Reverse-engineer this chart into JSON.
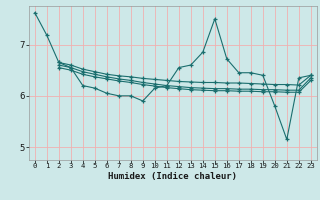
{
  "title": "",
  "xlabel": "Humidex (Indice chaleur)",
  "ylabel": "",
  "bg_color": "#cde8e8",
  "grid_color": "#f0b0b0",
  "line_color": "#1a6e6e",
  "xlim": [
    -0.5,
    23.5
  ],
  "ylim": [
    4.75,
    7.75
  ],
  "yticks": [
    5,
    6,
    7
  ],
  "xticks": [
    0,
    1,
    2,
    3,
    4,
    5,
    6,
    7,
    8,
    9,
    10,
    11,
    12,
    13,
    14,
    15,
    16,
    17,
    18,
    19,
    20,
    21,
    22,
    23
  ],
  "lines": [
    {
      "x": [
        0,
        1,
        2,
        3,
        4,
        5,
        6,
        7,
        8,
        9,
        10,
        11,
        12,
        13,
        14,
        15,
        16,
        17,
        18,
        19,
        20,
        21,
        22,
        23
      ],
      "y": [
        7.62,
        7.18,
        6.65,
        6.55,
        6.2,
        6.15,
        6.05,
        6.0,
        6.0,
        5.9,
        6.15,
        6.2,
        6.55,
        6.6,
        6.85,
        7.5,
        6.72,
        6.45,
        6.45,
        6.4,
        5.8,
        5.15,
        6.35,
        6.4
      ]
    },
    {
      "x": [
        2,
        3,
        4,
        5,
        6,
        7,
        8,
        9,
        10,
        11,
        12,
        13,
        14,
        15,
        16,
        17,
        18,
        19,
        20,
        21,
        22,
        23
      ],
      "y": [
        6.65,
        6.6,
        6.52,
        6.47,
        6.42,
        6.39,
        6.37,
        6.34,
        6.32,
        6.3,
        6.28,
        6.27,
        6.26,
        6.26,
        6.25,
        6.25,
        6.24,
        6.23,
        6.22,
        6.22,
        6.21,
        6.4
      ]
    },
    {
      "x": [
        2,
        3,
        4,
        5,
        6,
        7,
        8,
        9,
        10,
        11,
        12,
        13,
        14,
        15,
        16,
        17,
        18,
        19,
        20,
        21,
        22,
        23
      ],
      "y": [
        6.6,
        6.55,
        6.47,
        6.42,
        6.37,
        6.33,
        6.3,
        6.26,
        6.23,
        6.2,
        6.18,
        6.16,
        6.15,
        6.14,
        6.14,
        6.13,
        6.13,
        6.12,
        6.12,
        6.11,
        6.11,
        6.35
      ]
    },
    {
      "x": [
        2,
        3,
        4,
        5,
        6,
        7,
        8,
        9,
        10,
        11,
        12,
        13,
        14,
        15,
        16,
        17,
        18,
        19,
        20,
        21,
        22,
        23
      ],
      "y": [
        6.55,
        6.5,
        6.42,
        6.37,
        6.33,
        6.29,
        6.26,
        6.22,
        6.19,
        6.16,
        6.14,
        6.12,
        6.11,
        6.1,
        6.1,
        6.09,
        6.09,
        6.08,
        6.08,
        6.07,
        6.07,
        6.3
      ]
    }
  ]
}
